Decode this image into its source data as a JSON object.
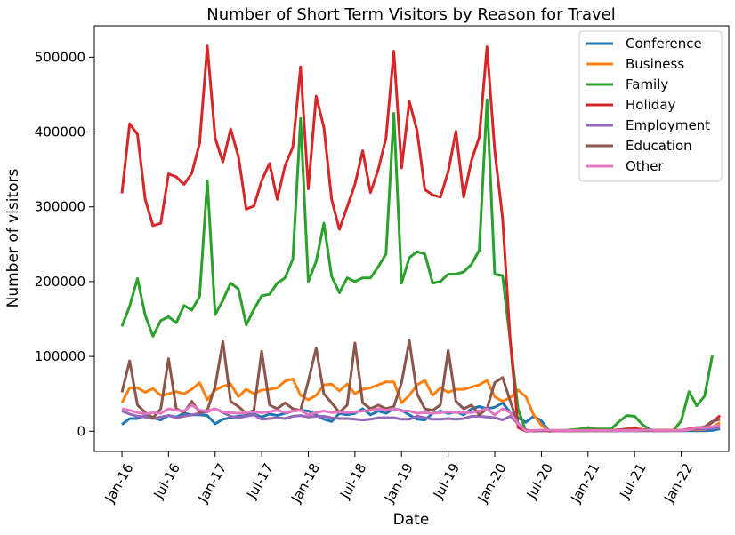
{
  "chart_data": {
    "type": "line",
    "title": "Number of Short Term Visitors by Reason for Travel",
    "xlabel": "Date",
    "ylabel": "Number of visitors",
    "x_start": "2016-01",
    "x_end": "2022-03",
    "x_ticks": [
      "Jan-16",
      "Jul-16",
      "Jan-17",
      "Jul-17",
      "Jan-18",
      "Jul-18",
      "Jan-19",
      "Jul-19",
      "Jan-20",
      "Jul-20",
      "Jan-21",
      "Jul-21",
      "Jan-22"
    ],
    "y_ticks": [
      0,
      100000,
      200000,
      300000,
      400000,
      500000
    ],
    "ylim": [
      -27000,
      542000
    ],
    "grid": false,
    "legend_position": "top-right",
    "series": [
      {
        "name": "Conference",
        "color": "#1f77b4",
        "values": [
          9000,
          17000,
          17000,
          21000,
          18000,
          15000,
          21000,
          19000,
          24000,
          22000,
          22000,
          21000,
          10000,
          16000,
          18000,
          20000,
          21000,
          23000,
          19000,
          23000,
          21000,
          24000,
          27000,
          28000,
          27000,
          22000,
          16000,
          13000,
          24000,
          22000,
          24000,
          30000,
          22000,
          27000,
          24000,
          30000,
          28000,
          22000,
          16000,
          15000,
          24000,
          27000,
          24000,
          26000,
          22000,
          30000,
          33000,
          30000,
          32000,
          38000,
          25000,
          18000,
          12000,
          20000,
          14000,
          0,
          1000,
          500,
          500,
          500,
          500,
          500,
          500,
          500,
          500,
          500,
          500,
          500,
          500,
          500,
          500,
          500,
          500,
          500,
          500,
          500,
          1000,
          3000
        ]
      },
      {
        "name": "Business",
        "color": "#ff7f0e",
        "values": [
          38000,
          58000,
          58000,
          52000,
          57000,
          48000,
          50000,
          53000,
          50000,
          56000,
          65000,
          42000,
          55000,
          60000,
          63000,
          46000,
          56000,
          50000,
          55000,
          56000,
          58000,
          67000,
          70000,
          48000,
          42000,
          48000,
          62000,
          63000,
          54000,
          63000,
          50000,
          56000,
          58000,
          62000,
          66000,
          66000,
          38000,
          48000,
          62000,
          68000,
          48000,
          58000,
          52000,
          56000,
          56000,
          59000,
          62000,
          68000,
          46000,
          40000,
          45000,
          55000,
          46000,
          22000,
          8000,
          0,
          1000,
          1000,
          1000,
          1000,
          1500,
          2000,
          1500,
          1500,
          1500,
          2000,
          2000,
          2000,
          1500,
          1500,
          1500,
          1500,
          1500,
          2000,
          2000,
          2500,
          5000,
          12000
        ]
      },
      {
        "name": "Family",
        "color": "#2ca02c",
        "values": [
          140000,
          167000,
          204000,
          155000,
          127000,
          148000,
          153000,
          145000,
          168000,
          162000,
          180000,
          335000,
          156000,
          175000,
          198000,
          190000,
          142000,
          163000,
          181000,
          183000,
          198000,
          205000,
          230000,
          418000,
          200000,
          227000,
          278000,
          207000,
          185000,
          205000,
          200000,
          205000,
          205000,
          220000,
          237000,
          425000,
          198000,
          232000,
          240000,
          237000,
          198000,
          200000,
          210000,
          210000,
          213000,
          223000,
          242000,
          443000,
          210000,
          208000,
          120000,
          30000,
          0,
          500,
          1000,
          1000,
          1000,
          1000,
          2000,
          3000,
          5000,
          3000,
          3000,
          3000,
          13000,
          21000,
          20000,
          9000,
          2000,
          1000,
          1000,
          1000,
          14000,
          53000,
          34000,
          47000,
          101000
        ]
      },
      {
        "name": "Holiday",
        "color": "#d62728",
        "values": [
          318000,
          411000,
          397000,
          310000,
          275000,
          278000,
          344000,
          340000,
          330000,
          345000,
          385000,
          515000,
          392000,
          360000,
          404000,
          367000,
          297000,
          301000,
          335000,
          358000,
          310000,
          355000,
          380000,
          487000,
          324000,
          448000,
          406000,
          310000,
          270000,
          300000,
          330000,
          375000,
          319000,
          350000,
          392000,
          508000,
          352000,
          441000,
          402000,
          323000,
          316000,
          313000,
          347000,
          401000,
          313000,
          362000,
          393000,
          514000,
          375000,
          285000,
          120000,
          5000,
          0,
          500,
          500,
          500,
          500,
          500,
          500,
          500,
          1000,
          1500,
          1000,
          1000,
          2000,
          3000,
          3500,
          2500,
          1500,
          1000,
          1000,
          1000,
          1000,
          3000,
          5000,
          5000,
          12000,
          21000
        ]
      },
      {
        "name": "Employment",
        "color": "#9467bd",
        "values": [
          27000,
          23000,
          20000,
          19000,
          17000,
          19000,
          21000,
          18000,
          20000,
          22000,
          24000,
          26000,
          30000,
          25000,
          20000,
          18000,
          20000,
          22000,
          16000,
          17000,
          18000,
          17000,
          20000,
          21000,
          19000,
          20000,
          20000,
          18000,
          17000,
          17000,
          16000,
          15000,
          16000,
          18000,
          18000,
          18000,
          16000,
          16000,
          20000,
          18000,
          16000,
          16000,
          17000,
          16000,
          17000,
          20000,
          20000,
          19000,
          18000,
          15000,
          20000,
          10000,
          2000,
          0,
          500,
          500,
          500,
          500,
          500,
          500,
          500,
          500,
          500,
          500,
          500,
          500,
          500,
          500,
          500,
          500,
          500,
          1000,
          1000,
          2000,
          3000,
          3000,
          4000,
          5000
        ]
      },
      {
        "name": "Education",
        "color": "#8c564b",
        "values": [
          52000,
          94000,
          35000,
          25000,
          18000,
          30000,
          97000,
          30000,
          25000,
          40000,
          25000,
          28000,
          60000,
          120000,
          40000,
          33000,
          24000,
          28000,
          107000,
          35000,
          30000,
          38000,
          30000,
          28000,
          67000,
          111000,
          50000,
          38000,
          25000,
          35000,
          118000,
          38000,
          30000,
          35000,
          30000,
          33000,
          65000,
          121000,
          50000,
          30000,
          28000,
          35000,
          108000,
          40000,
          30000,
          35000,
          22000,
          30000,
          65000,
          72000,
          40000,
          10000,
          0,
          500,
          500,
          500,
          500,
          500,
          500,
          500,
          500,
          500,
          500,
          500,
          1000,
          1500,
          1500,
          1000,
          1000,
          500,
          500,
          500,
          500,
          2000,
          4000,
          6000,
          13000,
          16000
        ]
      },
      {
        "name": "Other",
        "color": "#e377c2",
        "values": [
          30000,
          28000,
          25000,
          23000,
          25000,
          24000,
          30000,
          28000,
          27000,
          35000,
          28000,
          27000,
          30000,
          26000,
          25000,
          24000,
          25000,
          26000,
          25000,
          26000,
          28000,
          25000,
          27000,
          28000,
          22000,
          25000,
          27000,
          25000,
          26000,
          25000,
          26000,
          27000,
          28000,
          30000,
          28000,
          30000,
          27000,
          27000,
          24000,
          25000,
          24000,
          25000,
          26000,
          25000,
          25000,
          25000,
          27000,
          30000,
          22000,
          30000,
          25000,
          10000,
          0,
          1000,
          1500,
          1500,
          1000,
          1000,
          1000,
          1000,
          1000,
          1000,
          1000,
          1000,
          1000,
          1000,
          1000,
          1500,
          1500,
          1000,
          1000,
          1000,
          1000,
          2000,
          5000,
          5000,
          6000,
          8000
        ]
      }
    ]
  }
}
